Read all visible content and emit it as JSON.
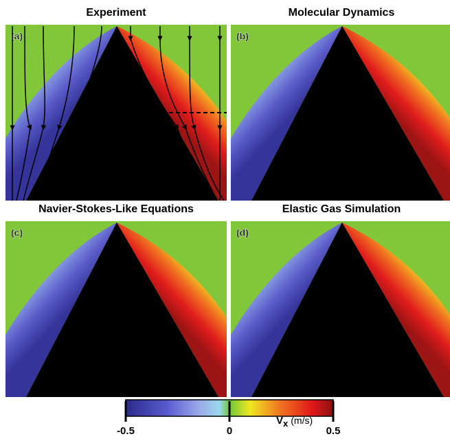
{
  "panels": [
    {
      "title": "Experiment",
      "label": "(a)"
    },
    {
      "title": "Molecular Dynamics",
      "label": "(b)"
    },
    {
      "title": "Navier-Stokes-Like Equations",
      "label": "(c)"
    },
    {
      "title": "Elastic Gas Simulation",
      "label": "(d)"
    }
  ],
  "colorbar": {
    "range": [
      -0.5,
      0.5
    ],
    "ticks": [
      -0.5,
      0,
      0.5
    ],
    "label": {
      "symbol": "V",
      "subscript": "x",
      "unit": "(m/s)"
    }
  }
}
